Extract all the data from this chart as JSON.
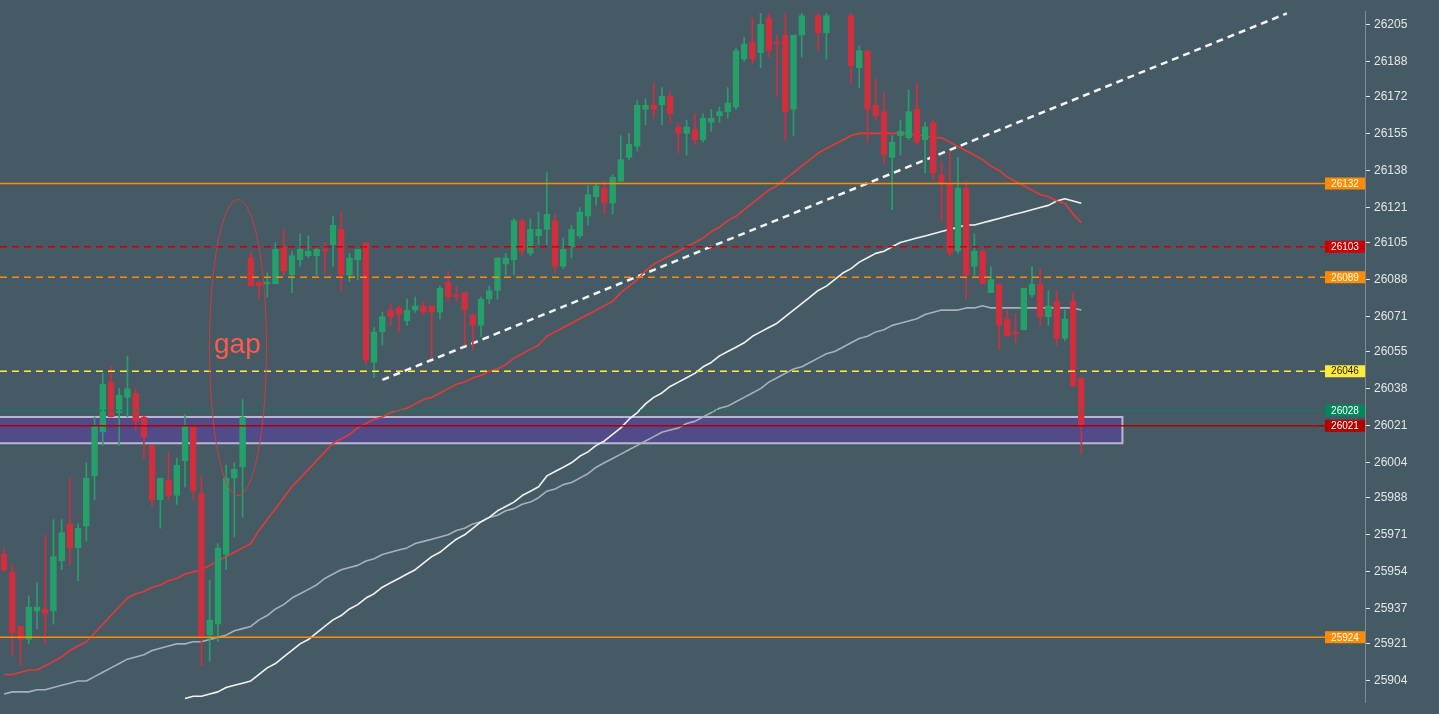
{
  "chart_data": {
    "type": "candlestick",
    "categories": [
      null,
      null,
      null,
      null,
      null,
      null,
      null,
      null,
      null,
      null,
      null,
      null,
      null,
      null,
      null,
      null,
      null,
      null,
      null,
      null,
      null,
      null,
      null,
      null,
      null,
      null,
      null,
      null,
      null,
      null,
      null,
      null,
      null,
      null,
      null,
      null,
      null,
      null,
      null,
      null,
      null,
      null,
      null,
      null,
      null,
      null,
      null,
      null,
      null,
      null,
      null,
      null,
      null,
      null,
      null,
      null,
      null,
      null,
      null,
      null,
      null,
      null,
      null,
      null,
      null,
      null,
      null,
      null,
      null,
      null,
      null,
      null,
      null,
      null,
      null,
      null,
      null,
      null,
      null,
      null,
      null,
      null,
      null,
      null,
      null,
      null,
      null,
      null,
      null,
      null,
      null,
      null,
      null,
      null,
      null,
      null,
      null,
      null,
      null,
      null,
      null,
      null,
      null,
      null,
      null,
      null,
      null,
      null,
      null,
      null,
      null,
      null,
      null,
      null,
      null,
      null,
      null,
      null,
      null,
      null,
      null,
      null,
      null,
      null,
      null,
      null,
      null,
      null,
      null,
      null,
      null,
      null,
      null,
      null,
      null,
      null,
      null,
      null,
      null,
      null,
      null,
      null,
      null,
      null,
      null,
      null,
      null,
      null,
      null,
      null,
      null,
      null,
      null,
      null,
      null,
      null,
      null,
      null,
      null,
      null,
      null,
      null,
      null,
      null,
      null,
      null
    ],
    "colors": [
      "#d12f3d",
      "#d12f3d",
      "#d12f3d",
      "#26a06b",
      "#26a06b",
      "#d12f3d",
      "#26a06b",
      "#26a06b",
      "#d12f3d",
      "#26a06b",
      "#26a06b",
      "#26a06b",
      "#26a06b",
      "#d12f3d",
      "#26a06b",
      "#26a06b",
      "#d12f3d",
      "#d12f3d",
      "#d12f3d",
      "#26a06b",
      "#d12f3d",
      "#26a06b",
      "#26a06b",
      "#d12f3d",
      "#d12f3d",
      "#26a06b",
      "#26a06b",
      "#26a06b",
      "#26a06b",
      "#26a06b",
      "#d12f3d",
      "#d12f3d",
      "#26a06b",
      "#26a06b",
      "#d12f3d",
      "#26a06b",
      "#26a06b",
      "#26a06b",
      "#26a06b",
      "#d12f3d",
      "#26a06b",
      "#d12f3d",
      "#26a06b",
      "#26a06b",
      "#d12f3d",
      "#26a06b",
      "#26a06b",
      "#d12f3d",
      "#d12f3d",
      "#26a06b",
      "#26a06b",
      "#d12f3d",
      "#d12f3d",
      "#26a06b",
      "#d12f3d",
      "#d12f3d",
      "#d12f3d",
      "#d12f3d",
      "#26a06b",
      "#26a06b",
      "#26a06b",
      "#26a06b",
      "#26a06b",
      "#d12f3d",
      "#26a06b",
      "#26a06b",
      "#26a06b",
      "#d12f3d",
      "#26a06b",
      "#26a06b",
      "#26a06b",
      "#26a06b",
      "#26a06b",
      "#d12f3d",
      "#26a06b",
      "#26a06b",
      "#26a06b",
      "#26a06b",
      "#26a06b",
      "#d12f3d",
      "#26a06b",
      "#d12f3d",
      "#d12f3d",
      "#26a06b",
      "#d12f3d",
      "#26a06b",
      "#26a06b",
      "#26a06b",
      "#26a06b",
      "#26a06b",
      "#26a06b",
      "#d12f3d",
      "#26a06b",
      "#d12f3d",
      "#d12f3d",
      "#d12f3d",
      "#26a06b",
      "#26a06b",
      null,
      "#d12f3d",
      "#26a06b",
      null,
      null,
      "#d12f3d",
      "#26a06b",
      "#d12f3d",
      "#d12f3d",
      "#d12f3d",
      "#26a06b",
      "#26a06b",
      "#26a06b",
      "#d12f3d",
      "#26a06b",
      "#d12f3d",
      "#d12f3d",
      "#d12f3d",
      "#26a06b",
      "#d12f3d",
      "#26a06b",
      "#d12f3d",
      "#26a06b",
      "#d12f3d",
      "#d12f3d",
      "#d12f3d",
      "#26a06b",
      "#26a06b",
      "#d12f3d",
      "#26a06b",
      "#d12f3d",
      "#26a06b",
      "#d12f3d",
      "#d12f3d",
      null,
      null,
      null,
      null,
      null,
      null,
      null,
      null,
      null,
      null,
      null,
      null,
      null,
      null,
      null,
      null,
      null,
      null,
      null,
      null,
      null,
      null,
      null,
      null,
      null,
      null,
      null,
      null,
      null,
      null,
      null,
      null,
      null,
      null
    ],
    "ohlc": [
      [
        25962,
        25965,
        25954,
        25955
      ],
      [
        25954,
        25957,
        25916,
        25926
      ],
      [
        25929,
        25929,
        25911,
        25923
      ],
      [
        25923,
        25943,
        25921,
        25938
      ],
      [
        25936,
        25949,
        25928,
        25938
      ],
      [
        25937,
        25971,
        25921,
        25935
      ],
      [
        25936,
        25978,
        25930,
        25961
      ],
      [
        25959,
        25978,
        25955,
        25972
      ],
      [
        25976,
        25997,
        25957,
        25965
      ],
      [
        25965,
        25976,
        25950,
        25974
      ],
      [
        25975,
        26004,
        25968,
        25997
      ],
      [
        25998,
        26025,
        25987,
        26021
      ],
      [
        26018,
        26045,
        26012,
        26040
      ],
      [
        26041,
        26048,
        26025,
        26025
      ],
      [
        26027,
        26038,
        26012,
        26035
      ],
      [
        26034,
        26053,
        26025,
        26038
      ],
      [
        26036,
        26038,
        26019,
        26023
      ],
      [
        26025,
        26026,
        26006,
        26016
      ],
      [
        26012,
        26012,
        25984,
        25987
      ],
      [
        25987,
        25997,
        25974,
        25997
      ],
      [
        25996,
        26009,
        25987,
        25989
      ],
      [
        25989,
        26006,
        25985,
        26003
      ],
      [
        26005,
        26026,
        25993,
        26021
      ],
      [
        26021,
        26021,
        25987,
        25991
      ],
      [
        25990,
        25998,
        25911,
        25924
      ],
      [
        25925,
        25950,
        25913,
        25932
      ],
      [
        25930,
        25967,
        25922,
        25965
      ],
      [
        25962,
        26003,
        25955,
        25997
      ],
      [
        25997,
        26004,
        25970,
        26001
      ],
      [
        26002,
        26033,
        25979,
        26025
      ],
      [
        26098,
        26101,
        26085,
        26085
      ],
      [
        26087,
        26087,
        26079,
        26085
      ],
      [
        26086,
        26091,
        26080,
        26087
      ],
      [
        26086,
        26105,
        26086,
        26102
      ],
      [
        26103,
        26111,
        26090,
        26092
      ],
      [
        26090,
        26101,
        26082,
        26099
      ],
      [
        26097,
        26109,
        26094,
        26102
      ],
      [
        26099,
        26108,
        26098,
        26101
      ],
      [
        26099,
        26103,
        26090,
        26102
      ],
      [
        26102,
        26105,
        26091,
        26101
      ],
      [
        26104,
        26117,
        26094,
        26113
      ],
      [
        26111,
        26119,
        26083,
        26090
      ],
      [
        26090,
        26100,
        26087,
        26098
      ],
      [
        26097,
        26102,
        26088,
        26102
      ],
      [
        26105,
        26105,
        26049,
        26051
      ],
      [
        26050,
        26066,
        26043,
        26064
      ],
      [
        26064,
        26073,
        26058,
        26071
      ],
      [
        26074,
        26077,
        26067,
        26071
      ],
      [
        26075,
        26076,
        26064,
        26072
      ],
      [
        26069,
        26079,
        26067,
        26074
      ],
      [
        26074,
        26080,
        26073,
        26076
      ],
      [
        26076,
        26078,
        26072,
        26073
      ],
      [
        26076,
        26076,
        26052,
        26073
      ],
      [
        26073,
        26085,
        26070,
        26084
      ],
      [
        26087,
        26092,
        26078,
        26080
      ],
      [
        26081,
        26085,
        26078,
        26080
      ],
      [
        26082,
        26082,
        26058,
        26074
      ],
      [
        26072,
        26072,
        26056,
        26067
      ],
      [
        26067,
        26080,
        26062,
        26079
      ],
      [
        26079,
        26085,
        26077,
        26083
      ],
      [
        26083,
        26098,
        26079,
        26098
      ],
      [
        26095,
        26100,
        26090,
        26098
      ],
      [
        26097,
        26116,
        26090,
        26115
      ],
      [
        26115,
        26116,
        26099,
        26101
      ],
      [
        26100,
        26116,
        26099,
        26111
      ],
      [
        26108,
        26119,
        26104,
        26111
      ],
      [
        26111,
        26137,
        26104,
        26118
      ],
      [
        26115,
        26118,
        26091,
        26094
      ],
      [
        26094,
        26107,
        26093,
        26102
      ],
      [
        26103,
        26113,
        26098,
        26111
      ],
      [
        26108,
        26121,
        26107,
        26119
      ],
      [
        26117,
        26131,
        26113,
        26127
      ],
      [
        26126,
        26132,
        26122,
        26131
      ],
      [
        26130,
        26133,
        26118,
        26123
      ],
      [
        26123,
        26136,
        26118,
        26135
      ],
      [
        26133,
        26154,
        26133,
        26143
      ],
      [
        26144,
        26155,
        26143,
        26150
      ],
      [
        26149,
        26170,
        26147,
        26168
      ],
      [
        26166,
        26171,
        26159,
        26168
      ],
      [
        26168,
        26178,
        26162,
        26166
      ],
      [
        26168,
        26176,
        26159,
        26172
      ],
      [
        26172,
        26174,
        26160,
        26164
      ],
      [
        26158,
        26160,
        26146,
        26155
      ],
      [
        26155,
        26161,
        26145,
        26158
      ],
      [
        26157,
        26164,
        26150,
        26152
      ],
      [
        26152,
        26164,
        26151,
        26162
      ],
      [
        26160,
        26166,
        26156,
        26162
      ],
      [
        26163,
        26167,
        26160,
        26165
      ],
      [
        26165,
        26176,
        26162,
        26169
      ],
      [
        26167,
        26194,
        26166,
        26193
      ],
      [
        26189,
        26199,
        26188,
        26196
      ],
      [
        26197,
        26208,
        26187,
        26189
      ],
      [
        26192,
        26210,
        26185,
        26205
      ],
      [
        26208,
        26210,
        26190,
        26193
      ],
      [
        26197,
        26200,
        26172,
        26196
      ],
      [
        26200,
        26210,
        26152,
        26165
      ],
      [
        26166,
        26200,
        26154,
        26200
      ],
      [
        26200,
        26210,
        26190,
        26209
      ],
      null,
      [
        26209,
        26210,
        26193,
        26201
      ],
      [
        26201,
        26210,
        26189,
        26209
      ],
      null,
      null,
      [
        26209,
        26210,
        26178,
        26186
      ],
      [
        26185,
        26195,
        26176,
        26193
      ],
      [
        26193,
        26193,
        26151,
        26166
      ],
      [
        26168,
        26180,
        26161,
        26163
      ],
      [
        26165,
        26174,
        26141,
        26145
      ],
      [
        26144,
        26154,
        26120,
        26151
      ],
      [
        26154,
        26161,
        26145,
        26156
      ],
      [
        26153,
        26175,
        26152,
        26165
      ],
      [
        26166,
        26178,
        26150,
        26151
      ],
      [
        26152,
        26160,
        26137,
        26158
      ],
      [
        26160,
        26161,
        26134,
        26137
      ],
      [
        26136,
        26142,
        26115,
        26132
      ],
      [
        26132,
        26147,
        26099,
        26100
      ],
      [
        26101,
        26144,
        26100,
        26130
      ],
      [
        26130,
        26133,
        26079,
        26090
      ],
      [
        26094,
        26109,
        26090,
        26101
      ],
      [
        26101,
        26102,
        26086,
        26086
      ],
      [
        26082,
        26094,
        26082,
        26088
      ],
      [
        26086,
        26086,
        26056,
        26067
      ],
      [
        26070,
        26074,
        26062,
        26062
      ],
      [
        26064,
        26072,
        26059,
        26063
      ],
      [
        26065,
        26084,
        26065,
        26084
      ],
      [
        26081,
        26094,
        26080,
        26086
      ],
      [
        26086,
        26093,
        26067,
        26071
      ],
      [
        26071,
        26083,
        26067,
        26076
      ],
      [
        26078,
        26083,
        26058,
        26061
      ],
      [
        26061,
        26074,
        26060,
        26070
      ],
      [
        26078,
        26082,
        26039,
        26039
      ],
      [
        26043,
        26043,
        26008,
        26021
      ],
      null,
      null,
      null,
      null,
      null,
      null,
      null,
      null,
      null,
      null,
      null,
      null,
      null,
      null,
      null,
      null,
      null,
      null,
      null,
      null,
      null,
      null,
      null,
      null,
      null,
      null,
      null,
      null,
      null,
      null,
      null,
      null,
      null,
      null
    ],
    "series": [
      {
        "type": "line",
        "color": "#e53935",
        "values": [
          25907,
          25907,
          25908,
          25909,
          25909,
          25911,
          25913,
          25915,
          25918,
          25920,
          25922,
          25926,
          25930,
          25934,
          25938,
          25942,
          25944,
          25945,
          25947,
          25948,
          25950,
          25951,
          25953,
          25954,
          25955,
          25957,
          25959,
          25961,
          25963,
          25965,
          25967,
          25973,
          25978,
          25983,
          25988,
          25993,
          25997,
          26001,
          26005,
          26009,
          26013,
          26015,
          26017,
          26020,
          26022,
          26024,
          26025,
          26027,
          26028,
          26029,
          26031,
          26033,
          26034,
          26036,
          26038,
          26040,
          26041,
          26043,
          26044,
          26046,
          26047,
          26049,
          26052,
          26054,
          26056,
          26058,
          26062,
          26064,
          26066,
          26068,
          26070,
          26072,
          26074,
          26076,
          26078,
          26082,
          26085,
          26088,
          26092,
          26095,
          26097,
          26099,
          26101,
          26103,
          26105,
          26107,
          26110,
          26112,
          26115,
          26117,
          26120,
          26123,
          26126,
          26129,
          26131,
          26134,
          26137,
          26140,
          26143,
          26146,
          26148,
          26150,
          26152,
          26154,
          26155,
          26155,
          26155,
          26155,
          26155,
          26155,
          26155,
          26154,
          26154,
          26153,
          26153,
          26151,
          26149,
          26147,
          26145,
          26143,
          26140,
          26138,
          26135,
          26133,
          26131,
          26129,
          26127,
          26126,
          26124,
          26123,
          26118,
          26114,
          null,
          null,
          null,
          null,
          null,
          null,
          null,
          null,
          null,
          null,
          null,
          null,
          null,
          null,
          null,
          null,
          null,
          null,
          null,
          null,
          null,
          null,
          null,
          null,
          null,
          null,
          null,
          null,
          null,
          null,
          null,
          null,
          null,
          null
        ]
      },
      {
        "type": "line",
        "color": "#f2f2f2",
        "values": [
          null,
          null,
          null,
          null,
          null,
          null,
          null,
          null,
          null,
          null,
          null,
          null,
          null,
          null,
          null,
          null,
          null,
          null,
          null,
          null,
          null,
          null,
          25896,
          25897,
          25897,
          25898,
          25899,
          25901,
          25902,
          25903,
          25904,
          25907,
          25910,
          25912,
          25915,
          25918,
          25921,
          25923,
          25926,
          25929,
          25932,
          25934,
          25937,
          25939,
          25942,
          25944,
          25947,
          25949,
          25951,
          25953,
          25955,
          25958,
          25961,
          25963,
          25966,
          25969,
          25971,
          25974,
          25977,
          25979,
          25982,
          25984,
          25986,
          25989,
          25991,
          25993,
          25998,
          26000,
          26002,
          26004,
          26007,
          26009,
          26012,
          26014,
          26017,
          26020,
          26024,
          26027,
          26031,
          26034,
          26036,
          26039,
          26041,
          26043,
          26045,
          26048,
          26050,
          26053,
          26055,
          26057,
          26059,
          26062,
          26064,
          26066,
          26068,
          26071,
          26074,
          26077,
          26080,
          26083,
          26085,
          26088,
          26091,
          26093,
          26096,
          26098,
          26100,
          26101,
          26103,
          26105,
          26106,
          26107,
          26108,
          26109,
          26110,
          26111,
          26112,
          26113,
          26113,
          26114,
          26115,
          26116,
          26117,
          26118,
          26119,
          26120,
          26121,
          26122,
          26124,
          26125,
          26124,
          26123,
          null,
          null,
          null,
          null,
          null,
          null,
          null,
          null,
          null,
          null,
          null,
          null,
          null,
          null,
          null,
          null,
          null,
          null,
          null,
          null,
          null,
          null,
          null,
          null,
          null,
          null,
          null,
          null,
          null,
          null,
          null,
          null,
          null,
          null
        ]
      },
      {
        "type": "line",
        "color": "#a7b2b8",
        "values": [
          25898,
          25899,
          25899,
          25899,
          25900,
          25900,
          25901,
          25902,
          25903,
          25904,
          25904,
          25906,
          25908,
          25910,
          25912,
          25914,
          25915,
          25916,
          25918,
          25919,
          25920,
          25921,
          25921,
          25922,
          25922,
          25923,
          25924,
          25925,
          25927,
          25928,
          25929,
          25932,
          25934,
          25937,
          25939,
          25942,
          25944,
          25946,
          25948,
          25951,
          25953,
          25955,
          25956,
          25957,
          25959,
          25960,
          25962,
          25963,
          25964,
          25965,
          25967,
          25968,
          25969,
          25970,
          25971,
          25973,
          25974,
          25976,
          25977,
          25979,
          25980,
          25982,
          25983,
          25985,
          25986,
          25988,
          25991,
          25992,
          25994,
          25995,
          25997,
          25999,
          26002,
          26004,
          26006,
          26008,
          26010,
          26012,
          26014,
          26016,
          26018,
          26019,
          26020,
          26022,
          26023,
          26025,
          26027,
          26029,
          26030,
          26032,
          26034,
          26036,
          26038,
          26041,
          26043,
          26045,
          26047,
          26048,
          26050,
          26052,
          26054,
          26055,
          26057,
          26059,
          26061,
          26062,
          26064,
          26065,
          26067,
          26068,
          26069,
          26070,
          26072,
          26073,
          26074,
          26074,
          26074,
          26075,
          26075,
          26076,
          26075,
          26075,
          26075,
          26075,
          26075,
          26075,
          26075,
          26075,
          26075,
          26075,
          26075,
          26074,
          null,
          null,
          null,
          null,
          null,
          null,
          null,
          null,
          null,
          null,
          null,
          null,
          null,
          null,
          null,
          null,
          null,
          null,
          null,
          null,
          null,
          null,
          null,
          null,
          null,
          null,
          null,
          null,
          null,
          null,
          null,
          null,
          null,
          null
        ]
      },
      {
        "type": "line",
        "color": "#f5f5f5",
        "line_style": "dashed",
        "values": [
          null,
          null,
          null,
          null,
          null,
          null,
          null,
          null,
          null,
          null,
          null,
          null,
          null,
          null,
          null,
          null,
          null,
          null,
          null,
          null,
          null,
          null,
          null,
          null,
          null,
          null,
          null,
          null,
          null,
          null,
          null,
          null,
          null,
          null,
          null,
          null,
          null,
          null,
          null,
          null,
          null,
          null,
          null,
          null,
          null,
          null,
          26042,
          null,
          null,
          null,
          null,
          null,
          null,
          null,
          null,
          null,
          null,
          null,
          null,
          null,
          null,
          null,
          null,
          null,
          null,
          null,
          null,
          null,
          null,
          null,
          null,
          null,
          null,
          null,
          null,
          null,
          null,
          null,
          null,
          null,
          null,
          null,
          null,
          null,
          null,
          null,
          null,
          null,
          null,
          null,
          null,
          null,
          null,
          null,
          null,
          null,
          null,
          null,
          null,
          null,
          null,
          null,
          null,
          null,
          null,
          null,
          null,
          null,
          null,
          null,
          null,
          null,
          null,
          null,
          null,
          null,
          null,
          null,
          null,
          null,
          null,
          null,
          null,
          null,
          null,
          null,
          null,
          null,
          null,
          null,
          null,
          null,
          null,
          null,
          null,
          null,
          null,
          null,
          null,
          null,
          null,
          null,
          null,
          null,
          null,
          null,
          null,
          null,
          null,
          null,
          null,
          null,
          null,
          null,
          null,
          null,
          26210,
          null,
          null,
          null,
          null,
          null,
          null,
          null,
          null,
          null
        ]
      }
    ],
    "ylim": [
      25894,
      26211
    ],
    "yticks": [
      25904,
      25921,
      25937,
      25954,
      25971,
      25988,
      26004,
      26021,
      26038,
      26055,
      26071,
      26088,
      26105,
      26121,
      26138,
      26155,
      26172,
      26188,
      26205
    ],
    "tick_labels": "y",
    "ref_lines": [
      {
        "axis": "y",
        "value": 26132,
        "label": "26132",
        "color": "#ff8c00",
        "line_style": "solid"
      },
      {
        "axis": "y",
        "value": 26103,
        "label": "26103",
        "color": "#cc0000",
        "line_style": "dashed"
      },
      {
        "axis": "y",
        "value": 26089,
        "label": "26089",
        "color": "#ff8c00",
        "line_style": "dashed"
      },
      {
        "axis": "y",
        "value": 26046,
        "label": "26046",
        "color": "#ffeb3b",
        "line_style": "dashed"
      },
      {
        "axis": "y",
        "value": 26028,
        "label": "26028",
        "color": "#00875a",
        "line_style": "dotted"
      },
      {
        "axis": "y",
        "value": 26021,
        "label": "26021",
        "color": "#b00000",
        "line_style": "solid"
      },
      {
        "axis": "y",
        "value": 25924,
        "label": "25924",
        "color": "#ff8c00",
        "line_style": "solid"
      }
    ],
    "bands": [
      {
        "axis": "y",
        "from": 26013,
        "to": 26025,
        "color": "#55498f"
      }
    ],
    "annotations": [
      "gap"
    ]
  }
}
